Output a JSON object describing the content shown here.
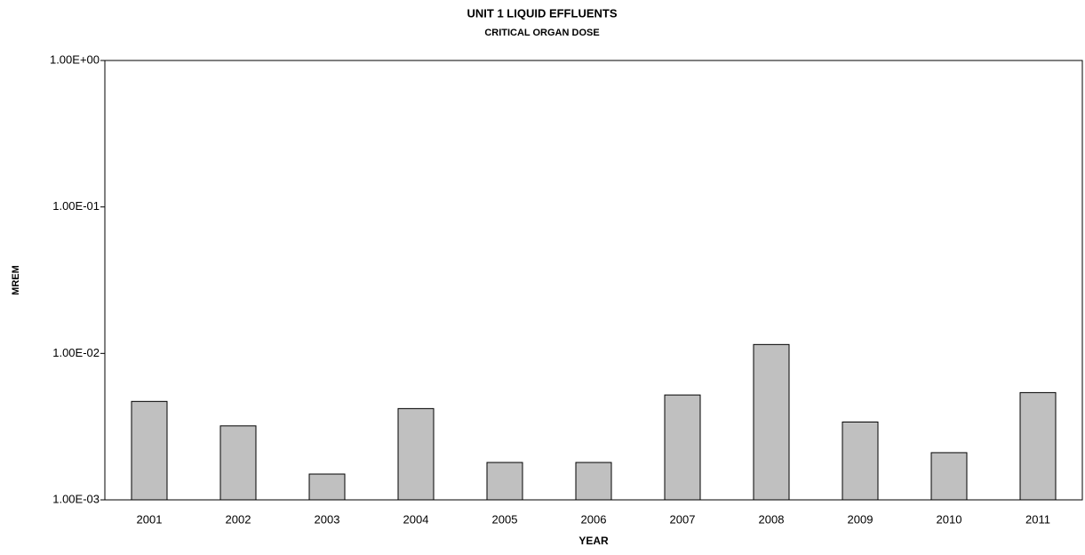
{
  "chart_data": {
    "type": "bar",
    "title": "UNIT 1 LIQUID EFFLUENTS",
    "subtitle": "CRITICAL ORGAN DOSE",
    "x_label": "YEAR",
    "y_label": "MREM",
    "categories": [
      "2001",
      "2002",
      "2003",
      "2004",
      "2005",
      "2006",
      "2007",
      "2008",
      "2009",
      "2010",
      "2011"
    ],
    "values": [
      0.0047,
      0.0032,
      0.0015,
      0.0042,
      0.0018,
      0.0018,
      0.0052,
      0.0115,
      0.0034,
      0.0021,
      0.0054
    ],
    "color": "#c0c0c0",
    "ylim": [
      0.001,
      1
    ],
    "yscale": "log",
    "yticks": [
      {
        "value": 0.001,
        "label": "1.00E-03"
      },
      {
        "value": 0.01,
        "label": "1.00E-02"
      },
      {
        "value": 0.1,
        "label": "1.00E-01"
      },
      {
        "value": 1,
        "label": "1.00E+00"
      }
    ],
    "grid": false
  }
}
